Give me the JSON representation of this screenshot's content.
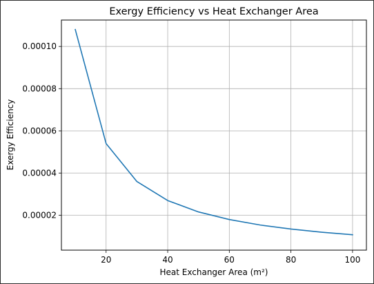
{
  "chart_data": {
    "type": "line",
    "title": "Exergy Efficiency vs Heat Exchanger Area",
    "xlabel": "Heat Exchanger Area (m²)",
    "ylabel": "Exergy Efficiency",
    "xlim": [
      5.5,
      104.5
    ],
    "ylim": [
      3.5e-06,
      0.0001125
    ],
    "xticks": [
      20,
      40,
      60,
      80,
      100
    ],
    "xtick_labels": [
      "20",
      "40",
      "60",
      "80",
      "100"
    ],
    "yticks": [
      2e-05,
      4e-05,
      6e-05,
      8e-05,
      0.0001
    ],
    "ytick_labels": [
      "0.00002",
      "0.00004",
      "0.00006",
      "0.00008",
      "0.00010"
    ],
    "grid": true,
    "series": [
      {
        "color": "#1f77b4",
        "x": [
          10,
          20,
          30,
          40,
          50,
          60,
          70,
          80,
          90,
          100
        ],
        "y": [
          0.000108,
          5.4e-05,
          3.6e-05,
          2.7e-05,
          2.16e-05,
          1.8e-05,
          1.54e-05,
          1.35e-05,
          1.2e-05,
          1.08e-05
        ]
      }
    ]
  }
}
